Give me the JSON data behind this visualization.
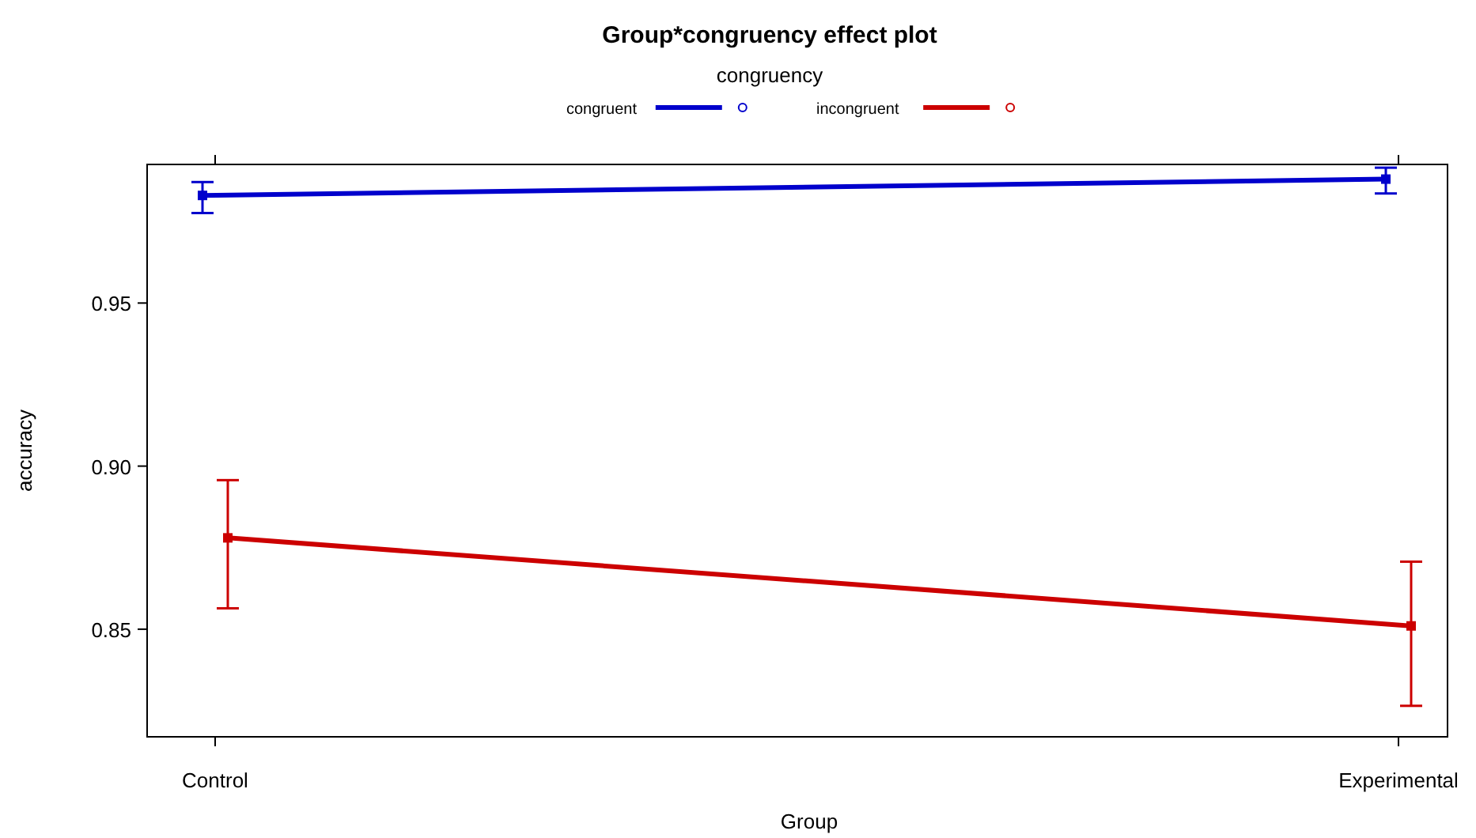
{
  "chart_data": {
    "type": "line",
    "title": "Group*congruency effect plot",
    "xlabel": "Group",
    "ylabel": "accuracy",
    "legend_title": "congruency",
    "legend": "top",
    "marker": "square",
    "categories": [
      "Control",
      "Experimental"
    ],
    "series": [
      {
        "name": "congruent",
        "color": "#0000cc",
        "values": [
          0.983,
          0.988
        ],
        "errors": [
          [
            0.9776,
            0.9871
          ],
          [
            0.9836,
            0.9915
          ]
        ]
      },
      {
        "name": "incongruent",
        "color": "#cc0000",
        "values": [
          0.878,
          0.851
        ],
        "errors": [
          [
            0.8564,
            0.8957
          ],
          [
            0.8265,
            0.8707
          ]
        ]
      }
    ],
    "ylim": [
      0.817,
      0.9925
    ],
    "yticks": [
      0.85,
      {
        "value": 0.9,
        "label": "0.90"
      },
      0.95
    ]
  }
}
